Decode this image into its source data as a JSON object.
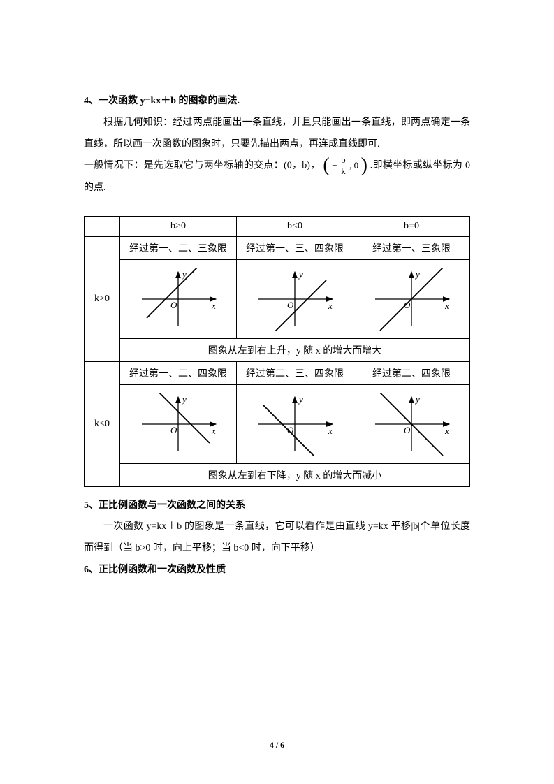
{
  "section4": {
    "heading": "4、一次函数 y=kx＋b 的图象的画法.",
    "p1": "根据几何知识：经过两点能画出一条直线，并且只能画出一条直线，即两点确定一条直线，所以画一次函数的图象时，只要先描出两点，再连成直线即可.",
    "p2_before": "一般情况下：是先选取它与两坐标轴的交点：(0，b)，",
    "frac_num": "b",
    "frac_den": "k",
    "frac_prefix": "−",
    "frac_y": ", 0",
    "p2_after": ".即横坐标或纵坐标为 0 的点."
  },
  "table": {
    "colHeaders": [
      "b>0",
      "b<0",
      "b=0"
    ],
    "rows": [
      {
        "label": "k>0",
        "quadrants": [
          "经过第一、二、三象限",
          "经过第一、三、四象限",
          "经过第一、三象限"
        ],
        "graphs": [
          {
            "slope": 1,
            "intercept": 18
          },
          {
            "slope": 1,
            "intercept": -18
          },
          {
            "slope": 1,
            "intercept": 0
          }
        ],
        "trend": "图象从左到右上升，y 随 x 的增大而增大"
      },
      {
        "label": "k<0",
        "quadrants": [
          "经过第一、二、四象限",
          "经过第二、三、四象限",
          "经过第二、四象限"
        ],
        "graphs": [
          {
            "slope": -1,
            "intercept": 18
          },
          {
            "slope": -1,
            "intercept": -18
          },
          {
            "slope": -1,
            "intercept": 0
          }
        ],
        "trend": "图象从左到右下降，y 随 x 的增大而减小"
      }
    ],
    "axisLabels": {
      "x": "x",
      "y": "y",
      "o": "O"
    },
    "colors": {
      "axis": "#000000",
      "line": "#000000",
      "text": "#000000"
    }
  },
  "section5": {
    "heading": "5、正比例函数与一次函数之间的关系",
    "p1": "一次函数 y=kx＋b 的图象是一条直线，它可以看作是由直线 y=kx 平移|b|个单位长度而得到（当 b>0 时，向上平移；当 b<0 时，向下平移）"
  },
  "section6": {
    "heading": "6、正比例函数和一次函数及性质"
  },
  "footer": {
    "page": "4",
    "sep": " / ",
    "total": "6"
  }
}
